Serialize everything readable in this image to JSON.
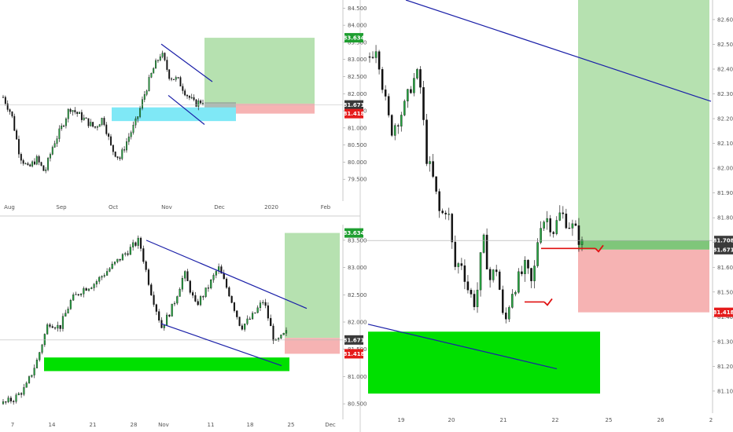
{
  "colors": {
    "up_candle": "#26a541",
    "down_candle": "#111111",
    "trend_line": "#1a1fa8",
    "target_zone": "#b6e1b0",
    "stop_zone": "#f6b3b3",
    "demand_zone_cyan": "#7fe8f6",
    "demand_zone_green": "#00e000",
    "marker_red": "#e01010",
    "tag_green": "#1e9e30",
    "tag_red": "#e51b1b",
    "tag_gray": "#3a3a3a"
  },
  "chart_data": [
    {
      "id": "top-left",
      "type": "candlestick",
      "timeframe_hint": "daily",
      "x_tick_labels": [
        "Aug",
        "Sep",
        "Oct",
        "Nov",
        "Dec",
        "2020",
        "Feb"
      ],
      "y_tick_labels": [
        "79.500",
        "80.000",
        "80.500",
        "81.000",
        "81.500",
        "82.000",
        "82.500",
        "83.000",
        "83.500",
        "84.000",
        "84.500"
      ],
      "ylim": [
        79.0,
        84.6
      ],
      "close_path": [
        81.9,
        81.4,
        80.2,
        79.8,
        80.1,
        79.7,
        80.5,
        81.0,
        81.6,
        81.4,
        81.2,
        81.0,
        81.3,
        80.4,
        80.1,
        80.7,
        81.2,
        82.0,
        82.7,
        83.2,
        82.5,
        82.4,
        82.0,
        81.7,
        81.8
      ],
      "price_tags": [
        {
          "label": "83.634",
          "value": 83.634,
          "color": "tag_green"
        },
        {
          "label": "81.671",
          "value": 81.671,
          "color": "tag_gray"
        },
        {
          "label": "81.418",
          "value": 81.418,
          "color": "tag_red"
        }
      ],
      "zones": [
        {
          "name": "target",
          "from": 81.708,
          "to": 83.634
        },
        {
          "name": "stop",
          "from": 81.418,
          "to": 81.708
        },
        {
          "name": "demand",
          "from": 81.2,
          "to": 81.6
        }
      ]
    },
    {
      "id": "bottom-left",
      "type": "candlestick",
      "timeframe_hint": "4h",
      "x_tick_labels": [
        "7",
        "14",
        "21",
        "28",
        "Nov",
        "11",
        "18",
        "25",
        "Dec"
      ],
      "y_tick_labels": [
        "80.500",
        "81.000",
        "81.500",
        "82.000",
        "82.500",
        "83.000",
        "83.500"
      ],
      "ylim": [
        80.3,
        83.7
      ],
      "close_path": [
        80.5,
        80.6,
        80.8,
        81.3,
        82.0,
        81.9,
        82.4,
        82.6,
        82.7,
        82.9,
        83.1,
        83.3,
        83.5,
        82.6,
        81.9,
        82.3,
        82.9,
        82.3,
        82.6,
        83.0,
        82.5,
        81.9,
        82.1,
        82.4,
        81.6,
        81.8
      ],
      "price_tags": [
        {
          "label": "83.634",
          "value": 83.634,
          "color": "tag_green"
        },
        {
          "label": "81.671",
          "value": 81.671,
          "color": "tag_gray"
        },
        {
          "label": "81.418",
          "value": 81.418,
          "color": "tag_red"
        }
      ]
    },
    {
      "id": "right",
      "type": "candlestick",
      "timeframe_hint": "1h",
      "x_tick_labels": [
        "19",
        "20",
        "21",
        "22",
        "25",
        "26",
        "2"
      ],
      "y_tick_labels": [
        "81.100",
        "81.200",
        "81.300",
        "81.400",
        "81.500",
        "81.600",
        "81.700",
        "81.800",
        "81.900",
        "82.000",
        "82.100",
        "82.200",
        "82.300",
        "82.400",
        "82.500",
        "82.600"
      ],
      "ylim": [
        81.03,
        82.66
      ],
      "close_path": [
        82.45,
        82.5,
        82.3,
        82.15,
        82.2,
        82.25,
        82.35,
        82.38,
        82.05,
        81.95,
        81.8,
        81.85,
        81.6,
        81.62,
        81.5,
        81.45,
        81.72,
        81.55,
        81.6,
        81.35,
        81.5,
        81.55,
        81.6,
        81.52,
        81.78,
        81.8,
        81.75,
        81.82,
        81.78,
        81.75,
        81.69
      ],
      "price_tags": [
        {
          "label": "81.708",
          "value": 81.708,
          "color": "tag_gray"
        },
        {
          "label": "81.671",
          "value": 81.671,
          "color": "tag_gray"
        },
        {
          "label": "81.418",
          "value": 81.418,
          "color": "tag_red"
        }
      ]
    }
  ]
}
